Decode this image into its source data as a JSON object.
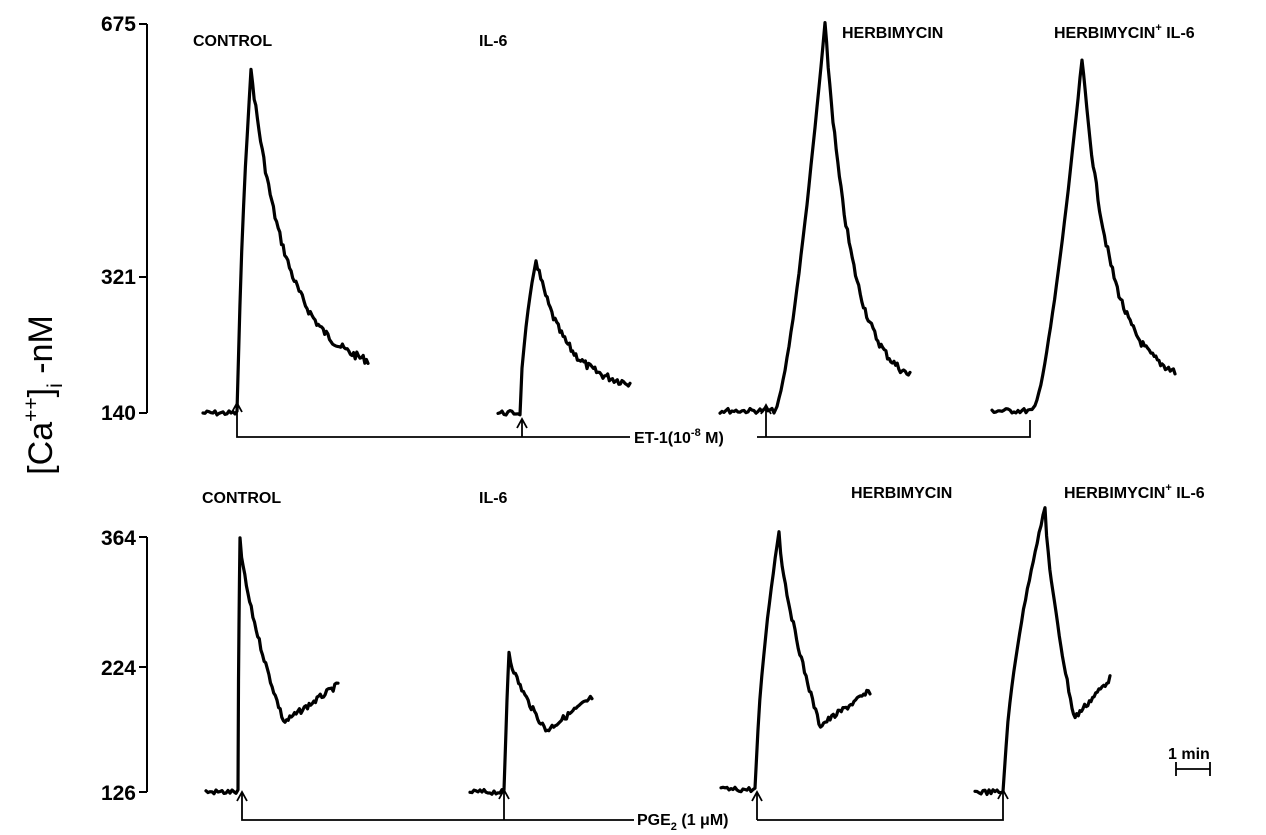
{
  "chart_data": {
    "type": "line",
    "ylabel_main": "[Ca",
    "ylabel_sup": "++",
    "ylabel_bracket": "]",
    "ylabel_sub": "i",
    "ylabel_tail": " -nM",
    "scale_bar_label": "1 min",
    "panels": [
      {
        "id": "top",
        "ticks": [
          {
            "label": "675",
            "value": 675
          },
          {
            "label": "321",
            "value": 321
          },
          {
            "label": "140",
            "value": 140
          }
        ],
        "stimulus": {
          "label": "ET-1(10",
          "label_exp": "-8",
          "label_tail": " M)"
        },
        "series": [
          {
            "name": "CONTROL",
            "baseline": 140,
            "peak": 610,
            "end": 210
          },
          {
            "name": "IL-6",
            "baseline": 140,
            "peak": 345,
            "end": 180
          },
          {
            "name": "HERBIMYCIN",
            "baseline": 143,
            "peak": 675,
            "end": 190
          },
          {
            "name": "HERBIMYCIN",
            "name_sup": "+",
            "name_tail": " IL-6",
            "baseline": 143,
            "peak": 625,
            "end": 195
          }
        ]
      },
      {
        "id": "bottom",
        "ticks": [
          {
            "label": "364",
            "value": 364
          },
          {
            "label": "224",
            "value": 224
          },
          {
            "label": "126",
            "value": 126
          }
        ],
        "stimulus": {
          "label": "PGE",
          "label_sub": "2",
          "label_tail": " (1 μM)"
        },
        "series": [
          {
            "name": "CONTROL",
            "baseline": 126,
            "peak": 363,
            "end": 210
          },
          {
            "name": "IL-6",
            "baseline": 126,
            "peak": 240,
            "end": 200
          },
          {
            "name": "HERBIMYCIN",
            "baseline": 128,
            "peak": 370,
            "end": 205
          },
          {
            "name": "HERBIMYCIN",
            "name_sup": "+",
            "name_tail": " IL-6",
            "baseline": 126,
            "peak": 395,
            "end": 215
          }
        ]
      }
    ]
  }
}
